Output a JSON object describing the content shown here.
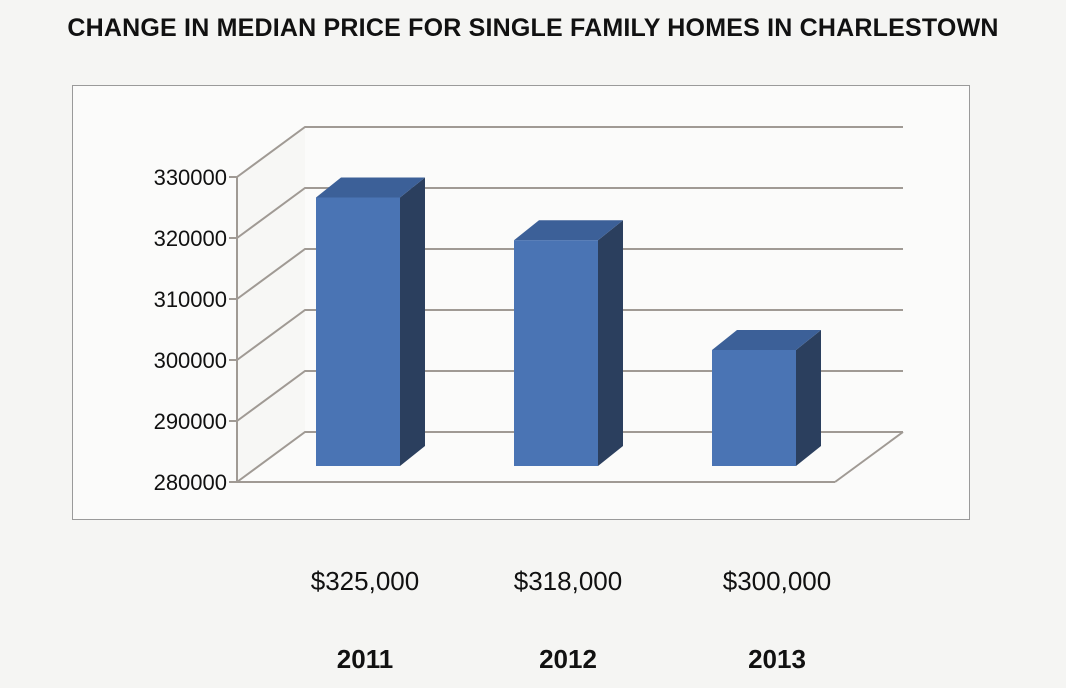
{
  "chart_data": {
    "type": "bar",
    "title": "CHANGE IN MEDIAN PRICE FOR SINGLE FAMILY HOMES IN CHARLESTOWN",
    "categories": [
      "2011",
      "2012",
      "2013"
    ],
    "values": [
      325000,
      318000,
      300000
    ],
    "data_labels": [
      "$325,000",
      "$318,000",
      "$300,000"
    ],
    "y_ticks": [
      "280000",
      "290000",
      "300000",
      "310000",
      "320000",
      "330000"
    ],
    "ylim": [
      280000,
      330000
    ],
    "grid": true,
    "legend": "none",
    "style": "3d-column",
    "colors": {
      "bar_front": "#4a74b4",
      "bar_top": "#3c6098",
      "bar_side": "#2b3f5e",
      "grid": "#a09a94"
    }
  }
}
